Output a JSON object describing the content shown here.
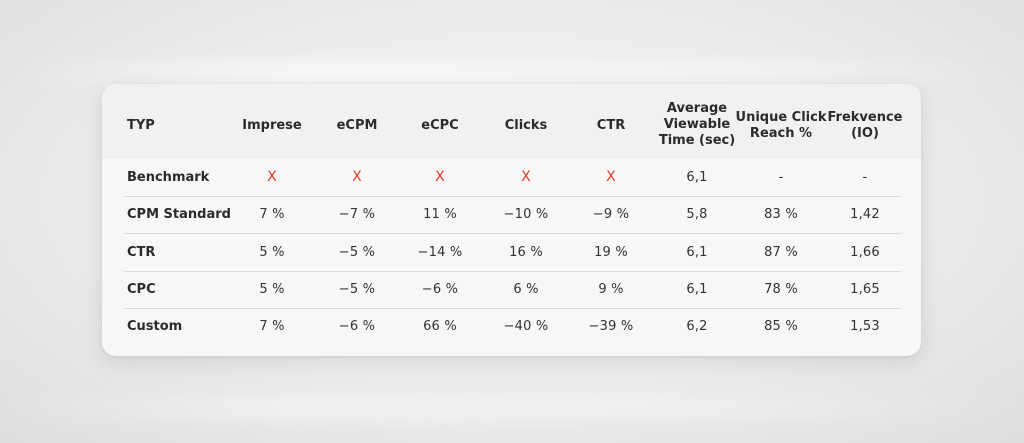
{
  "table": {
    "headers": [
      "TYP",
      "Imprese",
      "eCPM",
      "eCPC",
      "Clicks",
      "CTR",
      "Average\nViewable\nTime (sec)",
      "Unique Click\nReach %",
      "Frekvence\n(IO)"
    ],
    "header_lines": [
      [
        "TYP"
      ],
      [
        "Imprese"
      ],
      [
        "eCPM"
      ],
      [
        "eCPC"
      ],
      [
        "Clicks"
      ],
      [
        "CTR"
      ],
      [
        "Average",
        "Viewable",
        "Time (sec)"
      ],
      [
        "Unique Click",
        "Reach %"
      ],
      [
        "Frekvence",
        "(IO)"
      ]
    ],
    "rows": [
      {
        "label": "Benchmark",
        "values": [
          "X",
          "X",
          "X",
          "X",
          "X",
          "6,1",
          "-",
          "-"
        ]
      },
      {
        "label": "CPM Standard",
        "values": [
          "7 %",
          "−7 %",
          "11 %",
          "−10 %",
          "−9 %",
          "5,8",
          "83 %",
          "1,42"
        ]
      },
      {
        "label": "CTR",
        "values": [
          "5 %",
          "−5 %",
          "−14 %",
          "16 %",
          "19 %",
          "6,1",
          "87 %",
          "1,66"
        ]
      },
      {
        "label": "CPC",
        "values": [
          "5 %",
          "−5 %",
          "−6 %",
          "6 %",
          "9 %",
          "6,1",
          "78 %",
          "1,65"
        ]
      },
      {
        "label": "Custom",
        "values": [
          "7 %",
          "−6 %",
          "66 %",
          "−40 %",
          "−39 %",
          "6,2",
          "85 %",
          "1,53"
        ]
      }
    ]
  },
  "colors": {
    "x_mark": "#e03a2f",
    "card_bg": "#f8f7f5",
    "header_bg": "#f1f1f1"
  }
}
